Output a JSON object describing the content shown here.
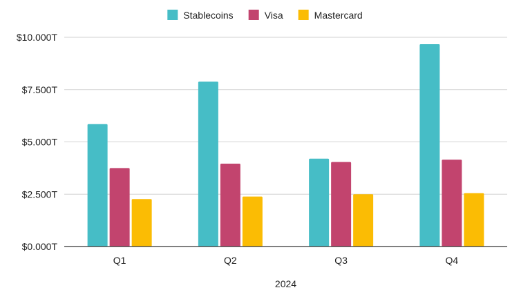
{
  "chart_data": {
    "type": "bar",
    "title": "",
    "xlabel": "2024",
    "ylabel": "",
    "categories": [
      "Q1",
      "Q2",
      "Q3",
      "Q4"
    ],
    "series": [
      {
        "name": "Stablecoins",
        "color": "#46BDC6",
        "values": [
          5.85,
          7.88,
          4.2,
          9.67
        ]
      },
      {
        "name": "Visa",
        "color": "#C2446E",
        "values": [
          3.75,
          3.96,
          4.04,
          4.15
        ]
      },
      {
        "name": "Mastercard",
        "color": "#FBBC04",
        "values": [
          2.27,
          2.39,
          2.5,
          2.55
        ]
      }
    ],
    "ylim": [
      0,
      10
    ],
    "yticks": [
      {
        "value": 0,
        "label": "$0.000T"
      },
      {
        "value": 2.5,
        "label": "$2.500T"
      },
      {
        "value": 5,
        "label": "$5.000T"
      },
      {
        "value": 7.5,
        "label": "$7.500T"
      },
      {
        "value": 10,
        "label": "$10.000T"
      }
    ],
    "grid": true,
    "legend_position": "top-center"
  }
}
